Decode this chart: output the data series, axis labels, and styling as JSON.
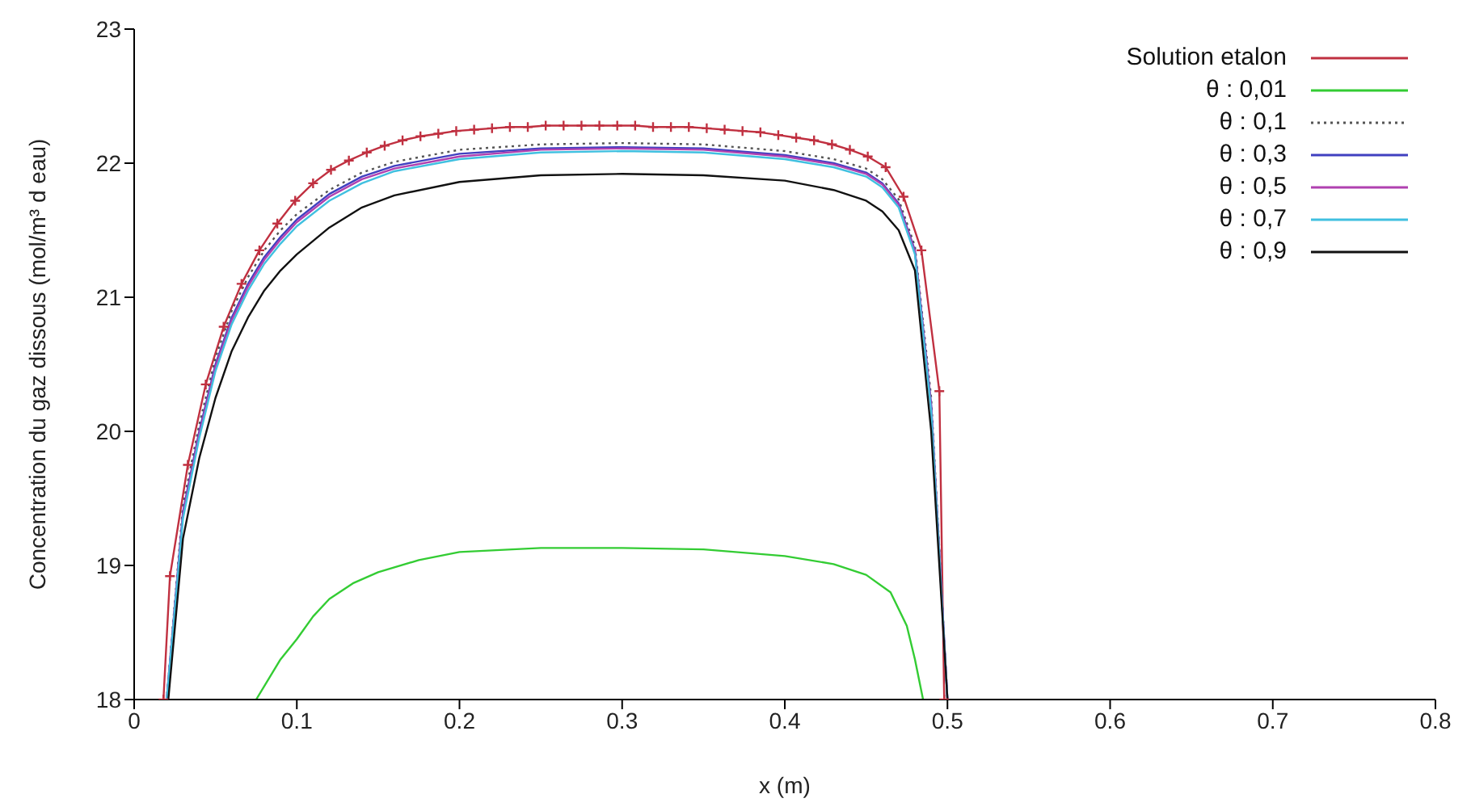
{
  "chart_data": {
    "type": "line",
    "xlabel": "x (m)",
    "ylabel": "Concentration du gaz dissous (mol/m³ d eau)",
    "xlim": [
      0,
      0.8
    ],
    "xticks": [
      0,
      0.1,
      0.2,
      0.3,
      0.4,
      0.5,
      0.6,
      0.7,
      0.8
    ],
    "ylim": [
      18,
      23
    ],
    "yticks": [
      18,
      19,
      20,
      21,
      22,
      23
    ],
    "grid": false,
    "legend": "top right",
    "series": [
      {
        "name": "Solution etalon",
        "color": "#c03040",
        "marker": "cross",
        "line_style": "solid",
        "x": [
          0.018,
          0.022,
          0.033,
          0.044,
          0.055,
          0.066,
          0.077,
          0.088,
          0.099,
          0.11,
          0.121,
          0.132,
          0.143,
          0.154,
          0.165,
          0.176,
          0.187,
          0.198,
          0.209,
          0.22,
          0.231,
          0.242,
          0.253,
          0.264,
          0.275,
          0.286,
          0.297,
          0.308,
          0.319,
          0.33,
          0.341,
          0.352,
          0.363,
          0.374,
          0.385,
          0.396,
          0.407,
          0.418,
          0.429,
          0.44,
          0.451,
          0.462,
          0.473,
          0.484,
          0.495,
          0.498
        ],
        "values": [
          18,
          18.92,
          19.75,
          20.35,
          20.78,
          21.1,
          21.35,
          21.55,
          21.72,
          21.85,
          21.95,
          22.02,
          22.08,
          22.13,
          22.17,
          22.2,
          22.22,
          22.24,
          22.25,
          22.26,
          22.27,
          22.27,
          22.28,
          22.28,
          22.28,
          22.28,
          22.28,
          22.28,
          22.27,
          22.27,
          22.27,
          22.26,
          22.25,
          22.24,
          22.23,
          22.21,
          22.19,
          22.17,
          22.14,
          22.1,
          22.05,
          21.97,
          21.75,
          21.35,
          20.3,
          18
        ]
      },
      {
        "name": "θ : 0,01",
        "color": "#33cc33",
        "marker": "none",
        "line_style": "solid",
        "x": [
          0.075,
          0.09,
          0.1,
          0.11,
          0.12,
          0.135,
          0.15,
          0.175,
          0.2,
          0.25,
          0.3,
          0.35,
          0.4,
          0.43,
          0.45,
          0.465,
          0.475,
          0.48,
          0.485
        ],
        "values": [
          18,
          18.3,
          18.45,
          18.62,
          18.75,
          18.87,
          18.95,
          19.04,
          19.1,
          19.13,
          19.13,
          19.12,
          19.07,
          19.01,
          18.93,
          18.8,
          18.55,
          18.3,
          18
        ]
      },
      {
        "name": "θ : 0,1",
        "color": "#555555",
        "marker": "none",
        "line_style": "dotted",
        "x": [
          0.02,
          0.03,
          0.04,
          0.05,
          0.06,
          0.07,
          0.08,
          0.09,
          0.1,
          0.12,
          0.14,
          0.16,
          0.2,
          0.25,
          0.3,
          0.35,
          0.4,
          0.43,
          0.45,
          0.46,
          0.47,
          0.48,
          0.49,
          0.5
        ],
        "values": [
          18,
          19.45,
          20.05,
          20.55,
          20.9,
          21.15,
          21.35,
          21.5,
          21.62,
          21.8,
          21.93,
          22.01,
          22.1,
          22.14,
          22.15,
          22.14,
          22.09,
          22.03,
          21.96,
          21.88,
          21.73,
          21.38,
          20.25,
          18
        ]
      },
      {
        "name": "θ : 0,3",
        "color": "#4040c0",
        "marker": "none",
        "line_style": "solid",
        "x": [
          0.02,
          0.03,
          0.04,
          0.05,
          0.06,
          0.07,
          0.08,
          0.09,
          0.1,
          0.12,
          0.14,
          0.16,
          0.2,
          0.25,
          0.3,
          0.35,
          0.4,
          0.43,
          0.45,
          0.46,
          0.47,
          0.48,
          0.49,
          0.5
        ],
        "values": [
          18,
          19.4,
          20,
          20.5,
          20.85,
          21.1,
          21.3,
          21.45,
          21.58,
          21.77,
          21.9,
          21.98,
          22.07,
          22.11,
          22.12,
          22.11,
          22.06,
          22,
          21.93,
          21.85,
          21.7,
          21.35,
          20.2,
          18
        ]
      },
      {
        "name": "θ : 0,5",
        "color": "#b040b0",
        "marker": "none",
        "line_style": "solid",
        "x": [
          0.02,
          0.03,
          0.04,
          0.05,
          0.06,
          0.07,
          0.08,
          0.09,
          0.1,
          0.12,
          0.14,
          0.16,
          0.2,
          0.25,
          0.3,
          0.35,
          0.4,
          0.43,
          0.45,
          0.46,
          0.47,
          0.48,
          0.49,
          0.5
        ],
        "values": [
          18,
          19.38,
          19.98,
          20.48,
          20.83,
          21.08,
          21.28,
          21.43,
          21.56,
          21.75,
          21.88,
          21.96,
          22.05,
          22.1,
          22.11,
          22.1,
          22.05,
          21.99,
          21.92,
          21.84,
          21.69,
          21.34,
          20.18,
          18
        ]
      },
      {
        "name": "θ : 0,7",
        "color": "#40c0e0",
        "marker": "none",
        "line_style": "solid",
        "x": [
          0.02,
          0.03,
          0.04,
          0.05,
          0.06,
          0.07,
          0.08,
          0.09,
          0.1,
          0.12,
          0.14,
          0.16,
          0.2,
          0.25,
          0.3,
          0.35,
          0.4,
          0.43,
          0.45,
          0.46,
          0.47,
          0.48,
          0.49,
          0.5
        ],
        "values": [
          18,
          19.35,
          19.95,
          20.45,
          20.8,
          21.05,
          21.25,
          21.4,
          21.53,
          21.72,
          21.85,
          21.94,
          22.03,
          22.08,
          22.09,
          22.08,
          22.03,
          21.97,
          21.9,
          21.82,
          21.67,
          21.32,
          20.15,
          18
        ]
      },
      {
        "name": "θ : 0,9",
        "color": "#111111",
        "marker": "none",
        "line_style": "solid",
        "x": [
          0.021,
          0.03,
          0.04,
          0.05,
          0.06,
          0.07,
          0.08,
          0.09,
          0.1,
          0.12,
          0.14,
          0.16,
          0.2,
          0.25,
          0.3,
          0.35,
          0.4,
          0.43,
          0.45,
          0.46,
          0.47,
          0.48,
          0.49,
          0.5
        ],
        "values": [
          18,
          19.2,
          19.8,
          20.25,
          20.6,
          20.85,
          21.05,
          21.2,
          21.32,
          21.52,
          21.67,
          21.76,
          21.86,
          21.91,
          21.92,
          21.91,
          21.87,
          21.8,
          21.72,
          21.64,
          21.5,
          21.2,
          20,
          18
        ]
      }
    ]
  }
}
